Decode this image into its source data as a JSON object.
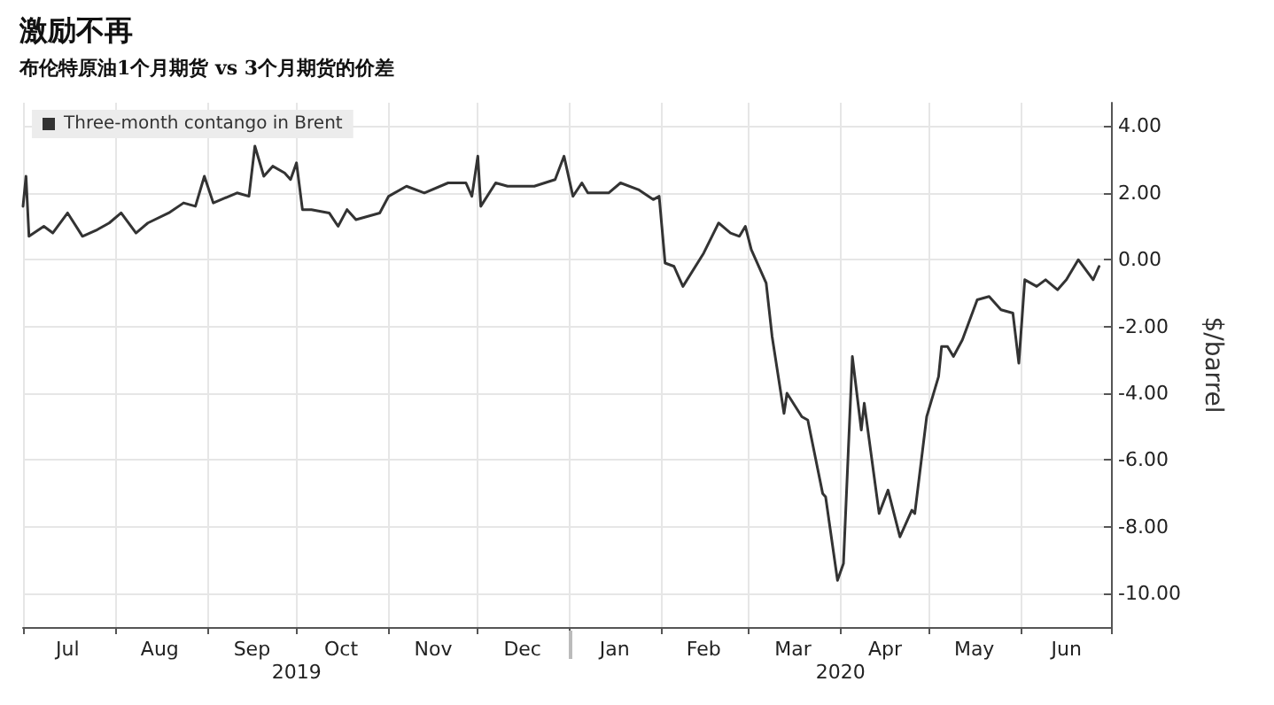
{
  "chart_data": {
    "type": "line",
    "title": "激励不再",
    "subtitle": "布伦特原油1个月期货 vs 3个月期货的价差",
    "ylabel": "$/barrel",
    "x": [
      "2019-07-01",
      "2019-07-02",
      "2019-07-03",
      "2019-07-08",
      "2019-07-11",
      "2019-07-16",
      "2019-07-21",
      "2019-07-26",
      "2019-07-30",
      "2019-08-03",
      "2019-08-08",
      "2019-08-12",
      "2019-08-19",
      "2019-08-24",
      "2019-08-28",
      "2019-08-31",
      "2019-09-03",
      "2019-09-11",
      "2019-09-15",
      "2019-09-17",
      "2019-09-20",
      "2019-09-23",
      "2019-09-27",
      "2019-09-29",
      "2019-10-01",
      "2019-10-03",
      "2019-10-06",
      "2019-10-12",
      "2019-10-15",
      "2019-10-18",
      "2019-10-21",
      "2019-10-29",
      "2019-11-01",
      "2019-11-07",
      "2019-11-13",
      "2019-11-21",
      "2019-11-27",
      "2019-11-29",
      "2019-12-01",
      "2019-12-02",
      "2019-12-07",
      "2019-12-11",
      "2019-12-20",
      "2019-12-27",
      "2019-12-30",
      "2020-01-02",
      "2020-01-05",
      "2020-01-07",
      "2020-01-14",
      "2020-01-18",
      "2020-01-24",
      "2020-01-29",
      "2020-01-31",
      "2020-02-02",
      "2020-02-05",
      "2020-02-08",
      "2020-02-15",
      "2020-02-20",
      "2020-02-24",
      "2020-02-27",
      "2020-02-29",
      "2020-03-02",
      "2020-03-07",
      "2020-03-09",
      "2020-03-13",
      "2020-03-14",
      "2020-03-19",
      "2020-03-21",
      "2020-03-26",
      "2020-03-27",
      "2020-03-31",
      "2020-04-02",
      "2020-04-05",
      "2020-04-08",
      "2020-04-09",
      "2020-04-14",
      "2020-04-17",
      "2020-04-21",
      "2020-04-25",
      "2020-04-26",
      "2020-04-30",
      "2020-05-04",
      "2020-05-05",
      "2020-05-07",
      "2020-05-09",
      "2020-05-12",
      "2020-05-17",
      "2020-05-21",
      "2020-05-25",
      "2020-05-29",
      "2020-05-31",
      "2020-06-02",
      "2020-06-06",
      "2020-06-09",
      "2020-06-13",
      "2020-06-16",
      "2020-06-20",
      "2020-06-25",
      "2020-06-27"
    ],
    "series": [
      {
        "name": "Three-month contango in Brent",
        "color": "#333333",
        "values": [
          1.6,
          2.5,
          0.7,
          1.0,
          0.8,
          1.4,
          0.7,
          0.9,
          1.1,
          1.4,
          0.8,
          1.1,
          1.4,
          1.7,
          1.6,
          2.5,
          1.7,
          2.0,
          1.9,
          3.4,
          2.5,
          2.8,
          2.6,
          2.4,
          2.9,
          1.5,
          1.5,
          1.4,
          1.0,
          1.5,
          1.2,
          1.4,
          1.9,
          2.2,
          2.0,
          2.3,
          2.3,
          1.9,
          3.1,
          1.6,
          2.3,
          2.2,
          2.2,
          2.4,
          3.1,
          1.9,
          2.3,
          2.0,
          2.0,
          2.3,
          2.1,
          1.8,
          1.9,
          -0.1,
          -0.2,
          -0.8,
          0.2,
          1.1,
          0.8,
          0.7,
          1.0,
          0.3,
          -0.7,
          -2.3,
          -4.6,
          -4.0,
          -4.7,
          -4.8,
          -7.0,
          -7.1,
          -9.6,
          -9.1,
          -2.9,
          -5.1,
          -4.3,
          -7.6,
          -6.9,
          -8.3,
          -7.5,
          -7.6,
          -4.7,
          -3.5,
          -2.6,
          -2.6,
          -2.9,
          -2.4,
          -1.2,
          -1.1,
          -1.5,
          -1.6,
          -3.1,
          -0.6,
          -0.8,
          -0.6,
          -0.9,
          -0.6,
          0.0,
          -0.6,
          -0.2
        ]
      }
    ],
    "xlim": [
      "2019-07-01",
      "2020-07-01"
    ],
    "xticks": [
      {
        "value": "2019-07-01",
        "label": null
      },
      {
        "value": "2019-07-16",
        "label": "Jul"
      },
      {
        "value": "2019-08-01",
        "label": null
      },
      {
        "value": "2019-08-16",
        "label": "Aug"
      },
      {
        "value": "2019-09-01",
        "label": null
      },
      {
        "value": "2019-09-16",
        "label": "Sep"
      },
      {
        "value": "2019-10-01",
        "label": null
      },
      {
        "value": "2019-10-16",
        "label": "Oct"
      },
      {
        "value": "2019-11-01",
        "label": null
      },
      {
        "value": "2019-11-16",
        "label": "Nov"
      },
      {
        "value": "2019-12-01",
        "label": null
      },
      {
        "value": "2019-12-16",
        "label": "Dec"
      },
      {
        "value": "2020-01-01",
        "label": null
      },
      {
        "value": "2020-01-16",
        "label": "Jan"
      },
      {
        "value": "2020-02-01",
        "label": null
      },
      {
        "value": "2020-02-15",
        "label": "Feb"
      },
      {
        "value": "2020-03-01",
        "label": null
      },
      {
        "value": "2020-03-16",
        "label": "Mar"
      },
      {
        "value": "2020-04-01",
        "label": null
      },
      {
        "value": "2020-04-16",
        "label": "Apr"
      },
      {
        "value": "2020-05-01",
        "label": null
      },
      {
        "value": "2020-05-16",
        "label": "May"
      },
      {
        "value": "2020-06-01",
        "label": null
      },
      {
        "value": "2020-06-16",
        "label": "Jun"
      },
      {
        "value": "2020-07-01",
        "label": null
      }
    ],
    "x2lim": [
      "2019-07-01",
      "2020-07-01"
    ],
    "x2ticks": [
      {
        "value": "2019-10-01",
        "label": "2019"
      },
      {
        "value": "2020-01-01",
        "label": null
      },
      {
        "value": "2020-04-01",
        "label": "2020"
      }
    ],
    "ylim": [
      -11,
      4.7
    ],
    "yticks": [
      {
        "value": 4,
        "label": "4.00"
      },
      {
        "value": 2,
        "label": "2.00"
      },
      {
        "value": 0,
        "label": "0.00"
      },
      {
        "value": -2,
        "label": "-2.00"
      },
      {
        "value": -4,
        "label": "-4.00"
      },
      {
        "value": -6,
        "label": "-6.00"
      },
      {
        "value": -8,
        "label": "-8.00"
      },
      {
        "value": -10,
        "label": "-10.00"
      }
    ],
    "grid": true,
    "legend": "top left",
    "marker": "none",
    "line_style": "solid"
  }
}
